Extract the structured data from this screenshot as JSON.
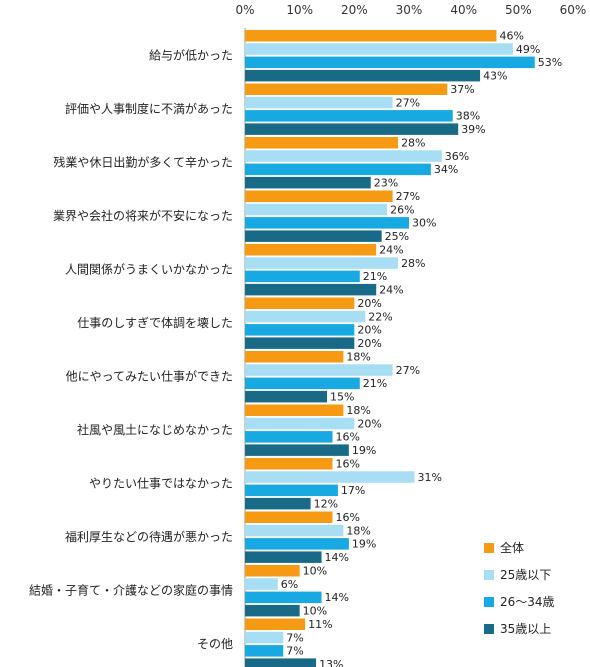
{
  "chart_data": {
    "type": "bar",
    "orientation": "horizontal",
    "title": "",
    "xlabel": "",
    "ylabel": "",
    "xlim": [
      0,
      60
    ],
    "x_ticks": [
      "0%",
      "10%",
      "20%",
      "30%",
      "40%",
      "50%",
      "60%"
    ],
    "x_tick_values": [
      0,
      10,
      20,
      30,
      40,
      50,
      60
    ],
    "grid": false,
    "legend_position": "bottom-right",
    "value_suffix": "%",
    "categories": [
      "給与が低かった",
      "評価や人事制度に不満があった",
      "残業や休日出勤が多くて辛かった",
      "業界や会社の将来が不安になった",
      "人間関係がうまくいかなかった",
      "仕事のしすぎで体調を壊した",
      "他にやってみたい仕事ができた",
      "社風や風土になじめなかった",
      "やりたい仕事ではなかった",
      "福利厚生などの待遇が悪かった",
      "結婚・子育て・介護などの家庭の事情",
      "その他"
    ],
    "series": [
      {
        "name": "全体",
        "color": "#f59a12",
        "values": [
          46,
          37,
          28,
          27,
          24,
          20,
          18,
          18,
          16,
          16,
          10,
          11
        ]
      },
      {
        "name": "25歳以下",
        "color": "#a8def3",
        "values": [
          49,
          27,
          36,
          26,
          28,
          22,
          27,
          20,
          31,
          18,
          6,
          7
        ]
      },
      {
        "name": "26～34歳",
        "color": "#19a9e2",
        "values": [
          53,
          38,
          34,
          30,
          21,
          20,
          21,
          16,
          17,
          19,
          14,
          7
        ]
      },
      {
        "name": "35歳以上",
        "color": "#186a86",
        "values": [
          43,
          39,
          23,
          25,
          24,
          20,
          15,
          19,
          12,
          14,
          10,
          13
        ]
      }
    ]
  }
}
